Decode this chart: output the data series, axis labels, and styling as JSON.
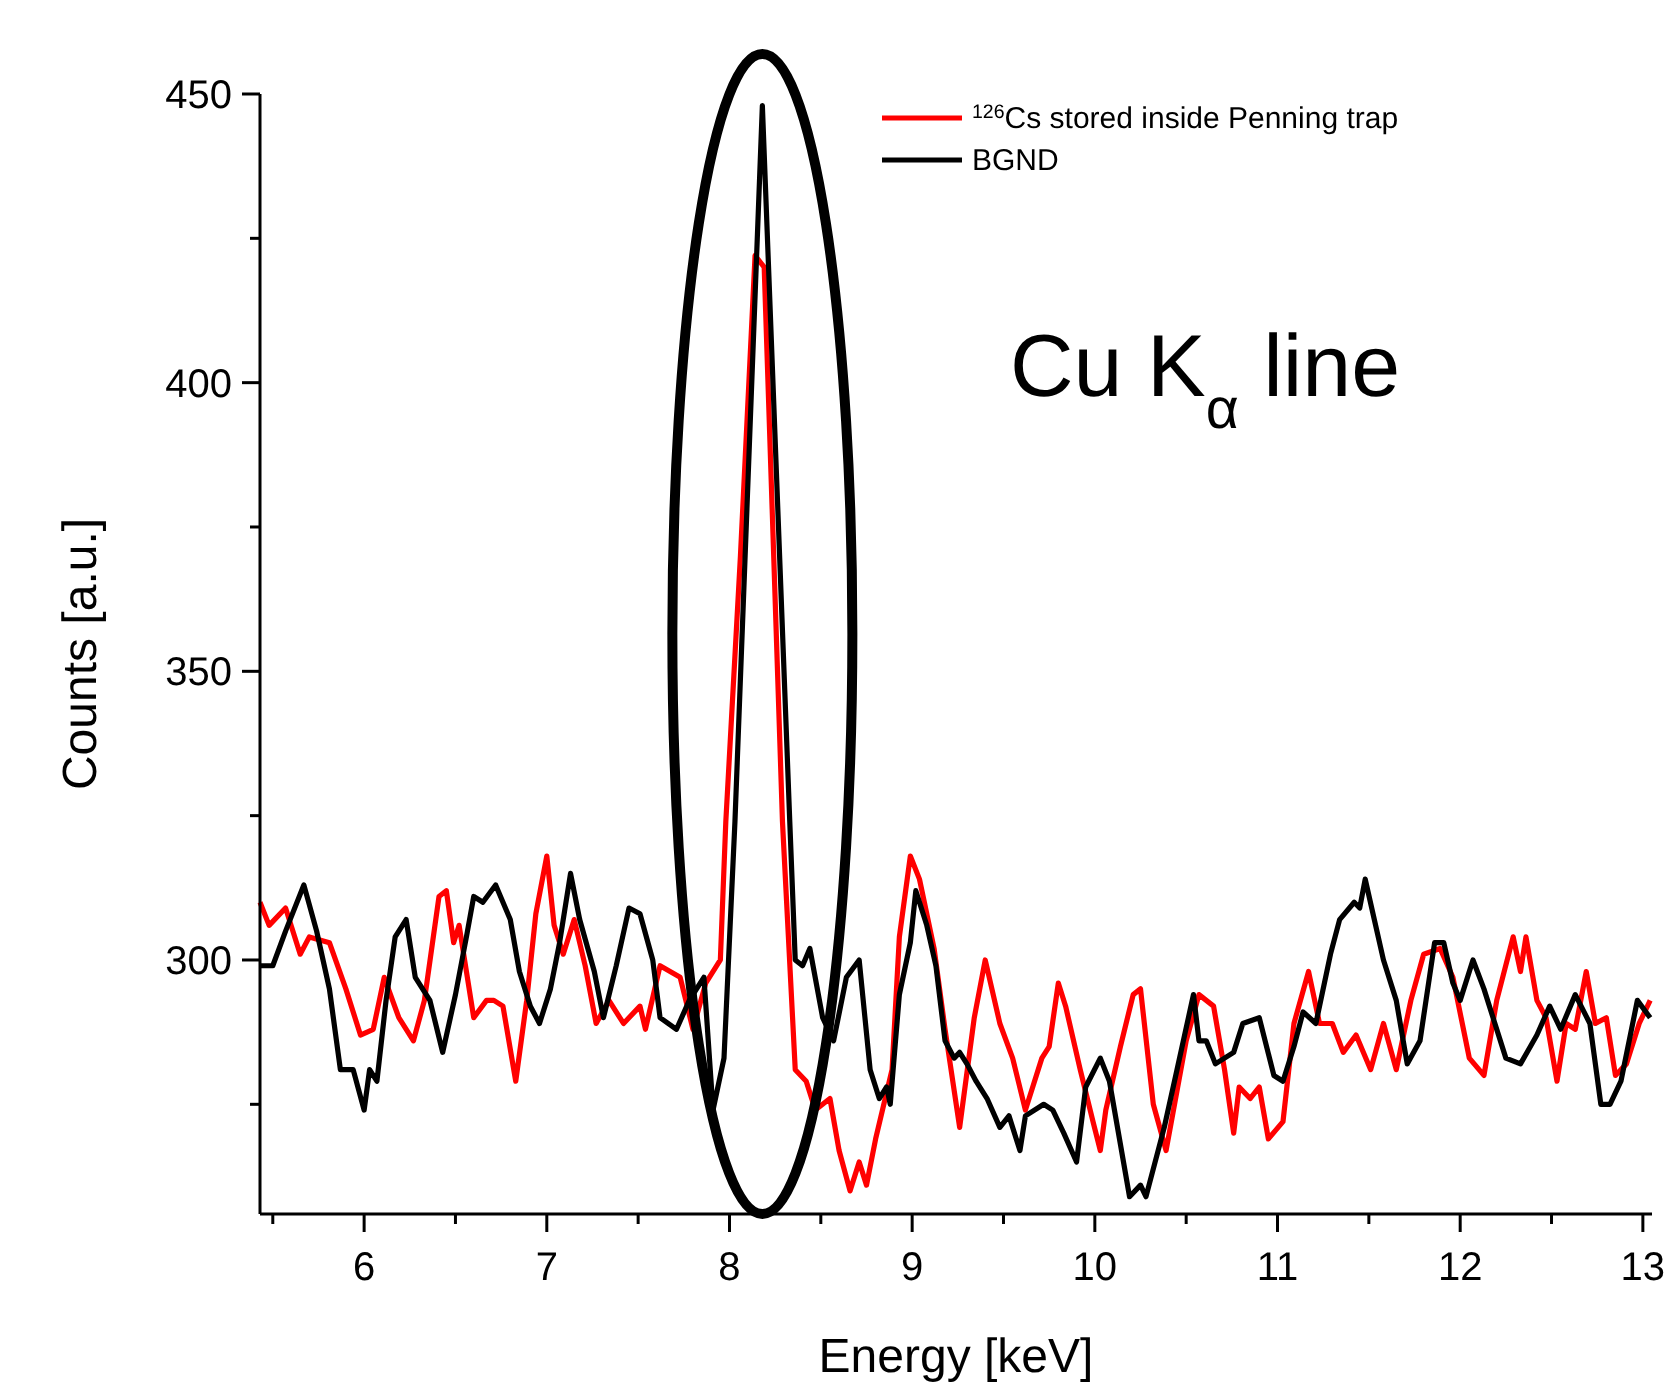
{
  "chart_data": {
    "type": "line",
    "xlabel": "Energy [keV]",
    "ylabel": "Counts [a.u.]",
    "annotations": [
      "Cu K$_{α}$ line"
    ],
    "xlim": [
      5.43,
      13.05
    ],
    "ylim": [
      256,
      450
    ],
    "xticks": [
      {
        "value": 5.5,
        "label": null
      },
      6,
      {
        "value": 6.5,
        "label": null
      },
      7,
      {
        "value": 7.5,
        "label": null
      },
      8,
      {
        "value": 8.5,
        "label": null
      },
      9,
      {
        "value": 9.5,
        "label": null
      },
      10,
      {
        "value": 10.5,
        "label": null
      },
      11,
      {
        "value": 11.5,
        "label": null
      },
      12,
      {
        "value": 12.5,
        "label": null
      },
      13
    ],
    "yticks": [
      {
        "value": 275,
        "label": null
      },
      300,
      {
        "value": 325,
        "label": null
      },
      350,
      {
        "value": 375,
        "label": null
      },
      400,
      {
        "value": 425,
        "label": null
      },
      450
    ],
    "grid": false,
    "legend": "top right",
    "line_style": "solid",
    "marker": "none",
    "series": [
      {
        "name": "$^{126}$Cs stored inside Penning trap",
        "color": "#ff0000",
        "x": [
          5.43,
          5.48,
          5.57,
          5.65,
          5.7,
          5.81,
          5.9,
          5.98,
          6.05,
          6.11,
          6.19,
          6.27,
          6.33,
          6.41,
          6.45,
          6.49,
          6.52,
          6.6,
          6.67,
          6.71,
          6.76,
          6.83,
          6.89,
          6.94,
          7.0,
          7.04,
          7.09,
          7.15,
          7.21,
          7.27,
          7.34,
          7.42,
          7.51,
          7.54,
          7.62,
          7.73,
          7.8,
          7.87,
          7.95,
          7.98,
          8.06,
          8.14,
          8.19,
          8.29,
          8.36,
          8.42,
          8.47,
          8.55,
          8.6,
          8.66,
          8.71,
          8.75,
          8.8,
          8.89,
          8.93,
          8.99,
          9.04,
          9.12,
          9.18,
          9.26,
          9.34,
          9.4,
          9.48,
          9.55,
          9.62,
          9.66,
          9.71,
          9.75,
          9.8,
          9.84,
          9.92,
          9.99,
          10.03,
          10.06,
          10.14,
          10.21,
          10.25,
          10.32,
          10.39,
          10.5,
          10.57,
          10.65,
          10.71,
          10.76,
          10.79,
          10.85,
          10.9,
          10.95,
          11.03,
          11.09,
          11.17,
          11.23,
          11.3,
          11.36,
          11.43,
          11.51,
          11.58,
          11.65,
          11.73,
          11.8,
          11.89,
          11.96,
          12.05,
          12.13,
          12.2,
          12.29,
          12.33,
          12.36,
          12.42,
          12.47,
          12.53,
          12.58,
          12.63,
          12.69,
          12.74,
          12.8,
          12.85,
          12.91,
          12.98,
          13.04
        ],
        "values": [
          310,
          306,
          309,
          301,
          304,
          303,
          295,
          287,
          288,
          297,
          290,
          286,
          293,
          311,
          312,
          303,
          306,
          290,
          293,
          293,
          292,
          279,
          293,
          308,
          318,
          306,
          301,
          307,
          299,
          289,
          293,
          289,
          292,
          288,
          299,
          297,
          288,
          296,
          300,
          324,
          370,
          422,
          420,
          324,
          281,
          279,
          274,
          276,
          267,
          260,
          265,
          261,
          269,
          281,
          304,
          318,
          314,
          302,
          288,
          271,
          290,
          300,
          289,
          283,
          274,
          278,
          283,
          285,
          296,
          292,
          281,
          272,
          267,
          274,
          285,
          294,
          295,
          275,
          267,
          286,
          294,
          292,
          281,
          270,
          278,
          276,
          278,
          269,
          272,
          289,
          298,
          289,
          289,
          284,
          287,
          281,
          289,
          281,
          293,
          301,
          302,
          297,
          283,
          280,
          293,
          304,
          298,
          304,
          293,
          290,
          279,
          289,
          288,
          298,
          289,
          290,
          280,
          282,
          289,
          293
        ]
      },
      {
        "name": "BGND",
        "color": "#000000",
        "x": [
          5.43,
          5.5,
          5.57,
          5.67,
          5.74,
          5.81,
          5.87,
          5.94,
          6.0,
          6.03,
          6.07,
          6.12,
          6.17,
          6.23,
          6.28,
          6.36,
          6.43,
          6.5,
          6.56,
          6.6,
          6.65,
          6.72,
          6.8,
          6.85,
          6.91,
          6.96,
          7.02,
          7.07,
          7.13,
          7.18,
          7.26,
          7.31,
          7.38,
          7.45,
          7.51,
          7.58,
          7.62,
          7.71,
          7.78,
          7.86,
          7.91,
          7.97,
          8.03,
          8.18,
          8.33,
          8.36,
          8.4,
          8.44,
          8.51,
          8.57,
          8.64,
          8.71,
          8.77,
          8.82,
          8.86,
          8.88,
          8.93,
          8.99,
          9.02,
          9.08,
          9.13,
          9.18,
          9.23,
          9.26,
          9.3,
          9.35,
          9.41,
          9.48,
          9.53,
          9.59,
          9.62,
          9.72,
          9.77,
          9.83,
          9.9,
          9.95,
          10.03,
          10.08,
          10.19,
          10.25,
          10.28,
          10.38,
          10.45,
          10.54,
          10.57,
          10.61,
          10.66,
          10.76,
          10.81,
          10.9,
          10.98,
          11.03,
          11.09,
          11.14,
          11.21,
          11.29,
          11.34,
          11.42,
          11.45,
          11.48,
          11.53,
          11.58,
          11.65,
          11.71,
          11.78,
          11.86,
          11.91,
          11.96,
          12.0,
          12.07,
          12.13,
          12.18,
          12.25,
          12.33,
          12.42,
          12.49,
          12.55,
          12.63,
          12.71,
          12.77,
          12.82,
          12.88,
          12.97,
          13.04
        ],
        "values": [
          299,
          299,
          305,
          313,
          305,
          295,
          281,
          281,
          274,
          281,
          279,
          293,
          304,
          307,
          297,
          293,
          284,
          294,
          304,
          311,
          310,
          313,
          307,
          298,
          292,
          289,
          295,
          303,
          315,
          307,
          298,
          290,
          299,
          309,
          308,
          300,
          290,
          288,
          293,
          297,
          274,
          283,
          324,
          448,
          324,
          300,
          299,
          302,
          290,
          286,
          297,
          300,
          281,
          276,
          278,
          275,
          294,
          303,
          312,
          306,
          299,
          286,
          283,
          284,
          282,
          279,
          276,
          271,
          273,
          267,
          273,
          275,
          274,
          270,
          265,
          278,
          283,
          279,
          259,
          261,
          259,
          271,
          281,
          294,
          286,
          286,
          282,
          284,
          289,
          290,
          280,
          279,
          285,
          291,
          289,
          301,
          307,
          310,
          309,
          314,
          307,
          300,
          293,
          282,
          286,
          303,
          303,
          296,
          293,
          300,
          295,
          290,
          283,
          282,
          287,
          292,
          288,
          294,
          289,
          275,
          275,
          279,
          293,
          290
        ]
      }
    ]
  }
}
